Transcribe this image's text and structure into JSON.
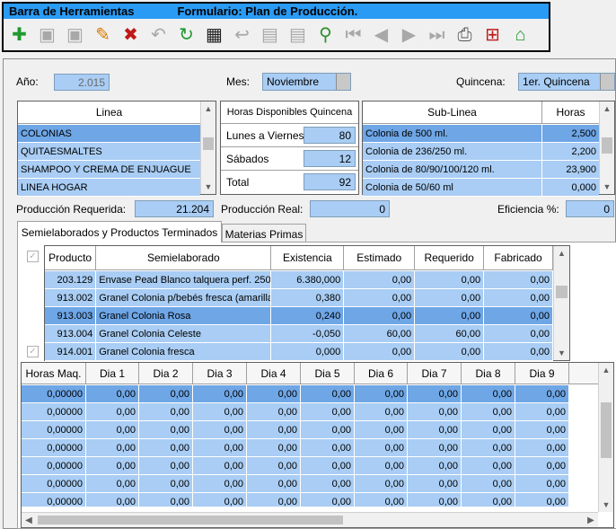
{
  "toolbar": {
    "title": "Barra de Herramientas",
    "form_title": "Formulario: Plan de Producción.",
    "icons": [
      {
        "name": "add-icon",
        "glyph": "✚",
        "cls": "grn"
      },
      {
        "name": "save-icon",
        "glyph": "▣",
        "cls": "dis"
      },
      {
        "name": "save-as-icon",
        "glyph": "▣",
        "cls": "dis"
      },
      {
        "name": "edit-icon",
        "glyph": "✎",
        "cls": "org"
      },
      {
        "name": "delete-icon",
        "glyph": "✖",
        "cls": "red"
      },
      {
        "name": "undo-icon",
        "glyph": "↶",
        "cls": "dis"
      },
      {
        "name": "refresh-icon",
        "glyph": "↻",
        "cls": "grn"
      },
      {
        "name": "film-icon",
        "glyph": "▦",
        "cls": "blk"
      },
      {
        "name": "back-icon",
        "glyph": "↩",
        "cls": "dis"
      },
      {
        "name": "list-icon",
        "glyph": "▤",
        "cls": "dis"
      },
      {
        "name": "list2-icon",
        "glyph": "▤",
        "cls": "dis"
      },
      {
        "name": "search-icon",
        "glyph": "⚲",
        "cls": "green2"
      },
      {
        "name": "first-record-icon",
        "glyph": "⏮",
        "cls": "dis"
      },
      {
        "name": "prev-record-icon",
        "glyph": "◀",
        "cls": "dis"
      },
      {
        "name": "next-record-icon",
        "glyph": "▶",
        "cls": "dis"
      },
      {
        "name": "last-record-icon",
        "glyph": "⏭",
        "cls": "dis"
      },
      {
        "name": "print-icon",
        "glyph": "⎙",
        "cls": "dk"
      },
      {
        "name": "gift-icon",
        "glyph": "⊞",
        "cls": "red"
      },
      {
        "name": "home-icon",
        "glyph": "⌂",
        "cls": "grn"
      }
    ]
  },
  "form": {
    "anio_label": "Año:",
    "anio_value": "2.015",
    "mes_label": "Mes:",
    "mes_value": "Noviembre",
    "quincena_label": "Quincena:",
    "quincena_value": "1er. Quincena"
  },
  "linea": {
    "header": "Linea",
    "items": [
      "COLONIAS",
      "QUITAESMALTES",
      "SHAMPOO Y CREMA DE ENJUAGUE",
      "LINEA HOGAR"
    ],
    "selected": 0
  },
  "horas": {
    "header": "Horas Disponibles Quincena",
    "rows": [
      {
        "label": "Lunes a Viernes",
        "value": "80"
      },
      {
        "label": "Sábados",
        "value": "12"
      },
      {
        "label": "Total",
        "value": "92"
      }
    ]
  },
  "sublinea": {
    "header": "Sub-Linea",
    "horas_header": "Horas",
    "rows": [
      {
        "name": "Colonia de 500 ml.",
        "horas": "2,500"
      },
      {
        "name": "Colonia de 236/250 ml.",
        "horas": "2,200"
      },
      {
        "name": "Colonia de 80/90/100/120 ml.",
        "horas": "23,900"
      },
      {
        "name": "Colonia de 50/60 ml",
        "horas": "0,000"
      }
    ],
    "selected": 0
  },
  "totals": {
    "requerida_label": "Producción Requerida:",
    "requerida_value": "21.204",
    "real_label": "Producción Real:",
    "real_value": "0",
    "eficiencia_label": "Eficiencia %:",
    "eficiencia_value": "0"
  },
  "tabs": [
    {
      "label": "Semielaborados y Productos Terminados",
      "active": true
    },
    {
      "label": "Materias Primas",
      "active": false
    }
  ],
  "semi": {
    "headers": [
      "Producto",
      "Semielaborado",
      "Existencia",
      "Estimado",
      "Requerido",
      "Fabricado"
    ],
    "rows": [
      [
        "203.129",
        "Envase Pead Blanco talquera perf. 250",
        "6.380,000",
        "0,00",
        "0,00",
        "0,00"
      ],
      [
        "913.002",
        "Granel Colonia p/bebés fresca (amarilla)",
        "0,380",
        "0,00",
        "0,00",
        "0,00"
      ],
      [
        "913.003",
        "Granel Colonia Rosa",
        "0,240",
        "0,00",
        "0,00",
        "0,00"
      ],
      [
        "913.004",
        "Granel Colonia Celeste",
        "-0,050",
        "60,00",
        "60,00",
        "0,00"
      ],
      [
        "914.001",
        "Granel Colonia fresca",
        "0,000",
        "0,00",
        "0,00",
        "0,00"
      ]
    ],
    "selected": 2
  },
  "dias": {
    "headers": [
      "Horas Maq.",
      "Dia 1",
      "Dia 2",
      "Dia 3",
      "Dia 4",
      "Dia 5",
      "Dia 6",
      "Dia 7",
      "Dia 8",
      "Dia 9"
    ],
    "rows": [
      [
        "0,00000",
        "0,00",
        "0,00",
        "0,00",
        "0,00",
        "0,00",
        "0,00",
        "0,00",
        "0,00",
        "0,00"
      ],
      [
        "0,00000",
        "0,00",
        "0,00",
        "0,00",
        "0,00",
        "0,00",
        "0,00",
        "0,00",
        "0,00",
        "0,00"
      ],
      [
        "0,00000",
        "0,00",
        "0,00",
        "0,00",
        "0,00",
        "0,00",
        "0,00",
        "0,00",
        "0,00",
        "0,00"
      ],
      [
        "0,00000",
        "0,00",
        "0,00",
        "0,00",
        "0,00",
        "0,00",
        "0,00",
        "0,00",
        "0,00",
        "0,00"
      ],
      [
        "0,00000",
        "0,00",
        "0,00",
        "0,00",
        "0,00",
        "0,00",
        "0,00",
        "0,00",
        "0,00",
        "0,00"
      ],
      [
        "0,00000",
        "0,00",
        "0,00",
        "0,00",
        "0,00",
        "0,00",
        "0,00",
        "0,00",
        "0,00",
        "0,00"
      ],
      [
        "0,00000",
        "0,00",
        "0,00",
        "0,00",
        "0,00",
        "0,00",
        "0,00",
        "0,00",
        "0,00",
        "0,00"
      ]
    ],
    "selected": 0
  }
}
